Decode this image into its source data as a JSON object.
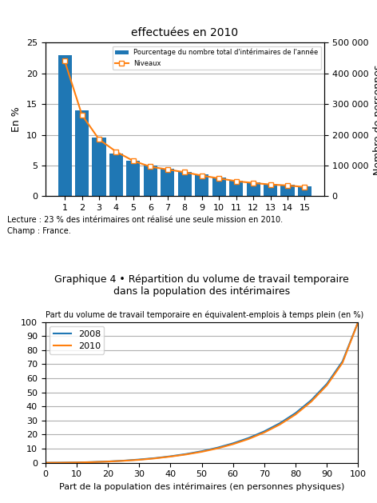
{
  "chart_data": [
    {
      "type": "bar",
      "title": "effectuées en 2010",
      "ylabel": "En %",
      "y2label": "Nombre de personnes",
      "categories": [
        "1",
        "2",
        "3",
        "4",
        "5",
        "6",
        "7",
        "8",
        "9",
        "10",
        "11",
        "12",
        "13",
        "14",
        "15"
      ],
      "series": [
        {
          "name": "Pourcentage du nombre total d'intérimaires de l'année",
          "type": "bar",
          "values": [
            23.0,
            14.0,
            9.5,
            7.0,
            5.8,
            5.0,
            4.5,
            4.0,
            3.5,
            3.0,
            2.5,
            2.2,
            2.0,
            1.8,
            1.6
          ]
        },
        {
          "name": "Niveaux",
          "type": "line",
          "marker": "square",
          "axis": "y2",
          "values": [
            440000,
            265000,
            185000,
            145000,
            115000,
            96000,
            87000,
            78000,
            67000,
            58000,
            49000,
            43000,
            38000,
            35000,
            30000
          ]
        }
      ],
      "ylim": [
        0,
        25
      ],
      "yticks": [
        0,
        5,
        10,
        15,
        20,
        25
      ],
      "y2lim": [
        0,
        500000
      ],
      "y2ticks": [
        0,
        {
          "value": 100000,
          "label": "100 000"
        },
        {
          "value": 200000,
          "label": "200 000"
        },
        {
          "value": 300000,
          "label": "300 000"
        },
        {
          "value": 400000,
          "label": "400 000"
        },
        {
          "value": 500000,
          "label": "500 000"
        }
      ],
      "grid": true,
      "legend": "upper right",
      "annotations": [
        "Lecture : 23 % des intérimaires ont réalisé une seule mission en 2010.",
        "Champ : France."
      ]
    },
    {
      "type": "line",
      "title": "Graphique 4 • Répartition du volume de travail temporaire\ndans la population des intérimaires",
      "ylabel": "Part du volume de travail temporaire en équivalent-emplois à temps plein (en %)",
      "xlabel": "Part de la population des intérimaires (en personnes physiques)",
      "x": [
        0,
        5,
        10,
        15,
        20,
        25,
        30,
        35,
        40,
        45,
        50,
        55,
        60,
        65,
        70,
        75,
        80,
        85,
        90,
        95,
        100
      ],
      "series": [
        {
          "name": "2008",
          "values": [
            0,
            0.05,
            0.2,
            0.5,
            0.9,
            1.5,
            2.3,
            3.3,
            4.6,
            6.2,
            8.2,
            10.7,
            13.8,
            17.6,
            22.3,
            28.1,
            35.3,
            44.4,
            56.0,
            72.0,
            100
          ]
        },
        {
          "name": "2010",
          "values": [
            0,
            0.04,
            0.18,
            0.45,
            0.85,
            1.4,
            2.1,
            3.1,
            4.4,
            5.9,
            7.8,
            10.2,
            13.2,
            16.9,
            21.5,
            27.2,
            34.3,
            43.4,
            55.0,
            71.0,
            100
          ]
        }
      ],
      "xlim": [
        0,
        100
      ],
      "ylim": [
        0,
        100
      ],
      "xticks": [
        0,
        10,
        20,
        30,
        40,
        50,
        60,
        70,
        80,
        90,
        100
      ],
      "yticks": [
        0,
        10,
        20,
        30,
        40,
        50,
        60,
        70,
        80,
        90,
        100
      ],
      "grid": true,
      "legend": "upper left"
    }
  ]
}
